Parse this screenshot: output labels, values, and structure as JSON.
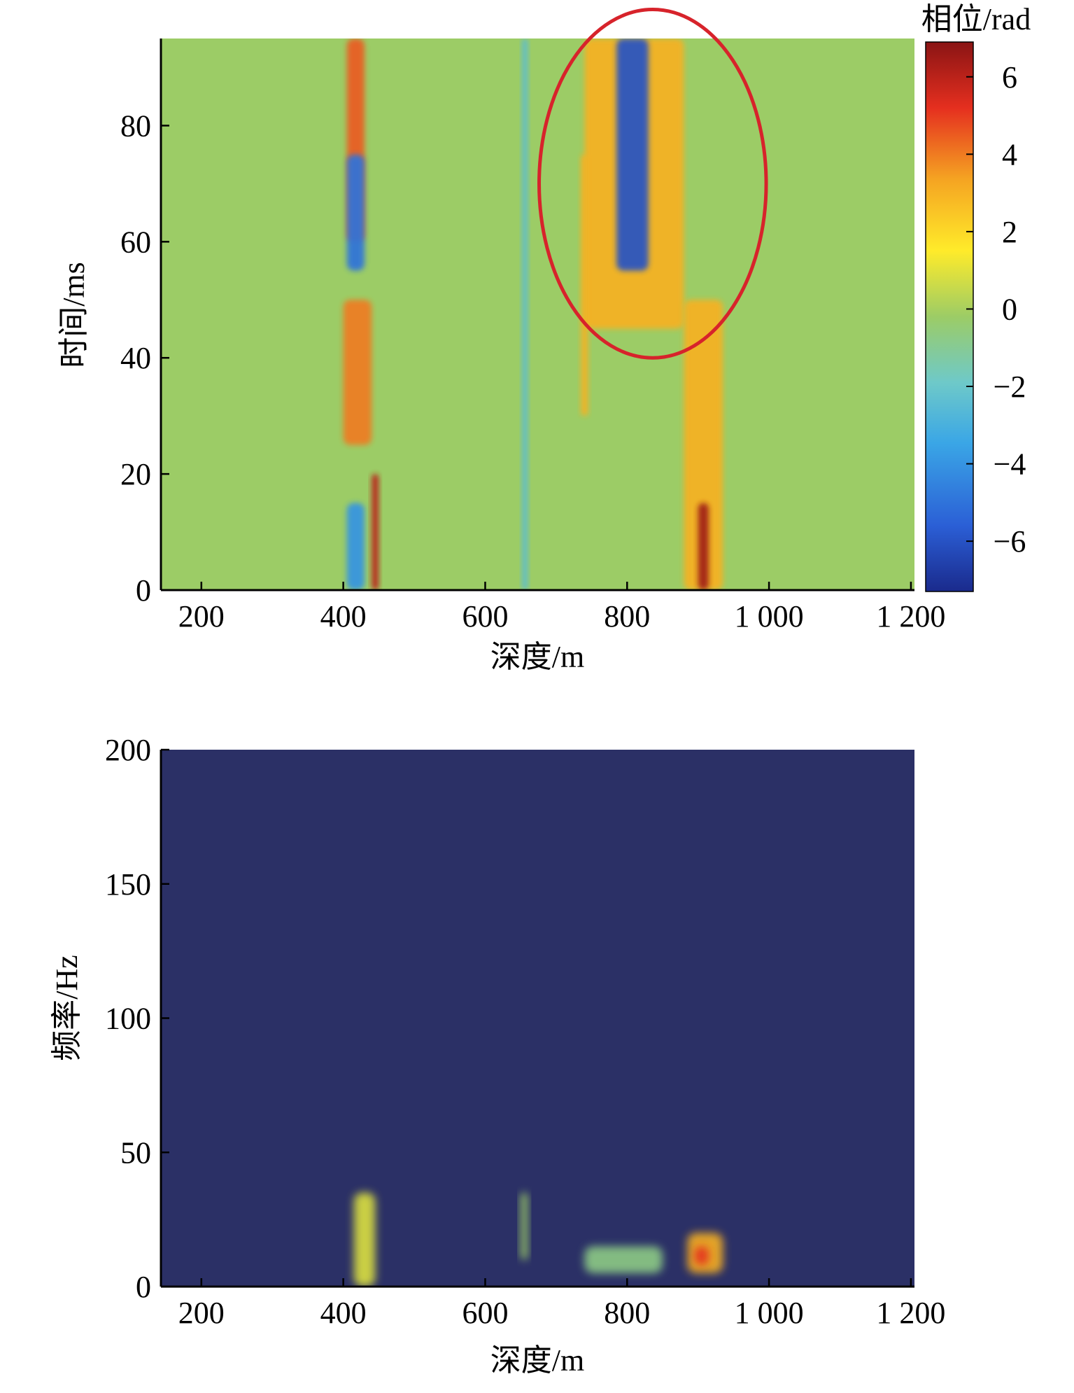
{
  "chart_data": [
    {
      "type": "heatmap",
      "title": "",
      "xlabel": "深度/m",
      "ylabel": "时间/ms",
      "xlim": [
        143,
        1205
      ],
      "ylim": [
        0,
        95
      ],
      "x_ticks": [
        200,
        400,
        600,
        800,
        1000,
        1200
      ],
      "x_tick_labels": [
        "200",
        "400",
        "600",
        "800",
        "1 000",
        "1 200"
      ],
      "y_ticks": [
        0,
        20,
        40,
        60,
        80
      ],
      "y_tick_labels": [
        "0",
        "20",
        "40",
        "60",
        "80"
      ],
      "colorbar": {
        "label": "相位/rad",
        "range": [
          -7.3,
          6.9
        ],
        "ticks": [
          -6,
          -4,
          -2,
          0,
          2,
          4,
          6
        ],
        "tick_labels": [
          "−6",
          "−4",
          "−2",
          "0",
          "2",
          "4",
          "6"
        ],
        "colormap": "jet",
        "colors": [
          "#1a2a8c",
          "#2b5fd6",
          "#3aa6e6",
          "#6ec9c9",
          "#9ccc66",
          "#ffeb2a",
          "#f5a422",
          "#e52f1f",
          "#8a1414"
        ]
      },
      "background_value": -0.3,
      "features": [
        {
          "depth": [
            405,
            430
          ],
          "time": [
            60,
            95
          ],
          "phase": 4.5
        },
        {
          "depth": [
            405,
            430
          ],
          "time": [
            55,
            75
          ],
          "phase": -5
        },
        {
          "depth": [
            400,
            440
          ],
          "time": [
            25,
            50
          ],
          "phase": 4
        },
        {
          "depth": [
            405,
            430
          ],
          "time": [
            0,
            15
          ],
          "phase": -4
        },
        {
          "depth": [
            440,
            450
          ],
          "time": [
            0,
            20
          ],
          "phase": 6
        },
        {
          "depth": [
            652,
            660
          ],
          "time": [
            0,
            95
          ],
          "phase": -2.5
        },
        {
          "depth": [
            735,
            745
          ],
          "time": [
            30,
            75
          ],
          "phase": 3
        },
        {
          "depth": [
            740,
            880
          ],
          "time": [
            45,
            95
          ],
          "phase": 3
        },
        {
          "depth": [
            785,
            830
          ],
          "time": [
            55,
            95
          ],
          "phase": -6
        },
        {
          "depth": [
            880,
            935
          ],
          "time": [
            0,
            50
          ],
          "phase": 3
        },
        {
          "depth": [
            900,
            915
          ],
          "time": [
            0,
            15
          ],
          "phase": 6.5
        }
      ],
      "annotation": {
        "shape": "ellipse",
        "color": "#d7232b",
        "center_depth": 836,
        "center_time": 70,
        "depth_radius": 160,
        "time_radius": 30
      }
    },
    {
      "type": "heatmap",
      "title": "",
      "xlabel": "深度/m",
      "ylabel": "频率/Hz",
      "xlim": [
        143,
        1205
      ],
      "ylim": [
        0,
        200
      ],
      "x_ticks": [
        200,
        400,
        600,
        800,
        1000,
        1200
      ],
      "x_tick_labels": [
        "200",
        "400",
        "600",
        "800",
        "1 000",
        "1 200"
      ],
      "y_ticks": [
        0,
        50,
        100,
        150,
        200
      ],
      "y_tick_labels": [
        "0",
        "50",
        "100",
        "150",
        "200"
      ],
      "colormap": "jet",
      "background_color": "#2b3066",
      "features": [
        {
          "depth": [
            415,
            445
          ],
          "freq": [
            0,
            35
          ],
          "intensity": 0.6
        },
        {
          "depth": [
            650,
            660
          ],
          "freq": [
            10,
            35
          ],
          "intensity": 0.5
        },
        {
          "depth": [
            740,
            850
          ],
          "freq": [
            5,
            15
          ],
          "intensity": 0.45
        },
        {
          "depth": [
            885,
            935
          ],
          "freq": [
            5,
            20
          ],
          "intensity": 0.8
        },
        {
          "depth": [
            895,
            915
          ],
          "freq": [
            8,
            15
          ],
          "intensity": 1.0
        }
      ]
    }
  ]
}
